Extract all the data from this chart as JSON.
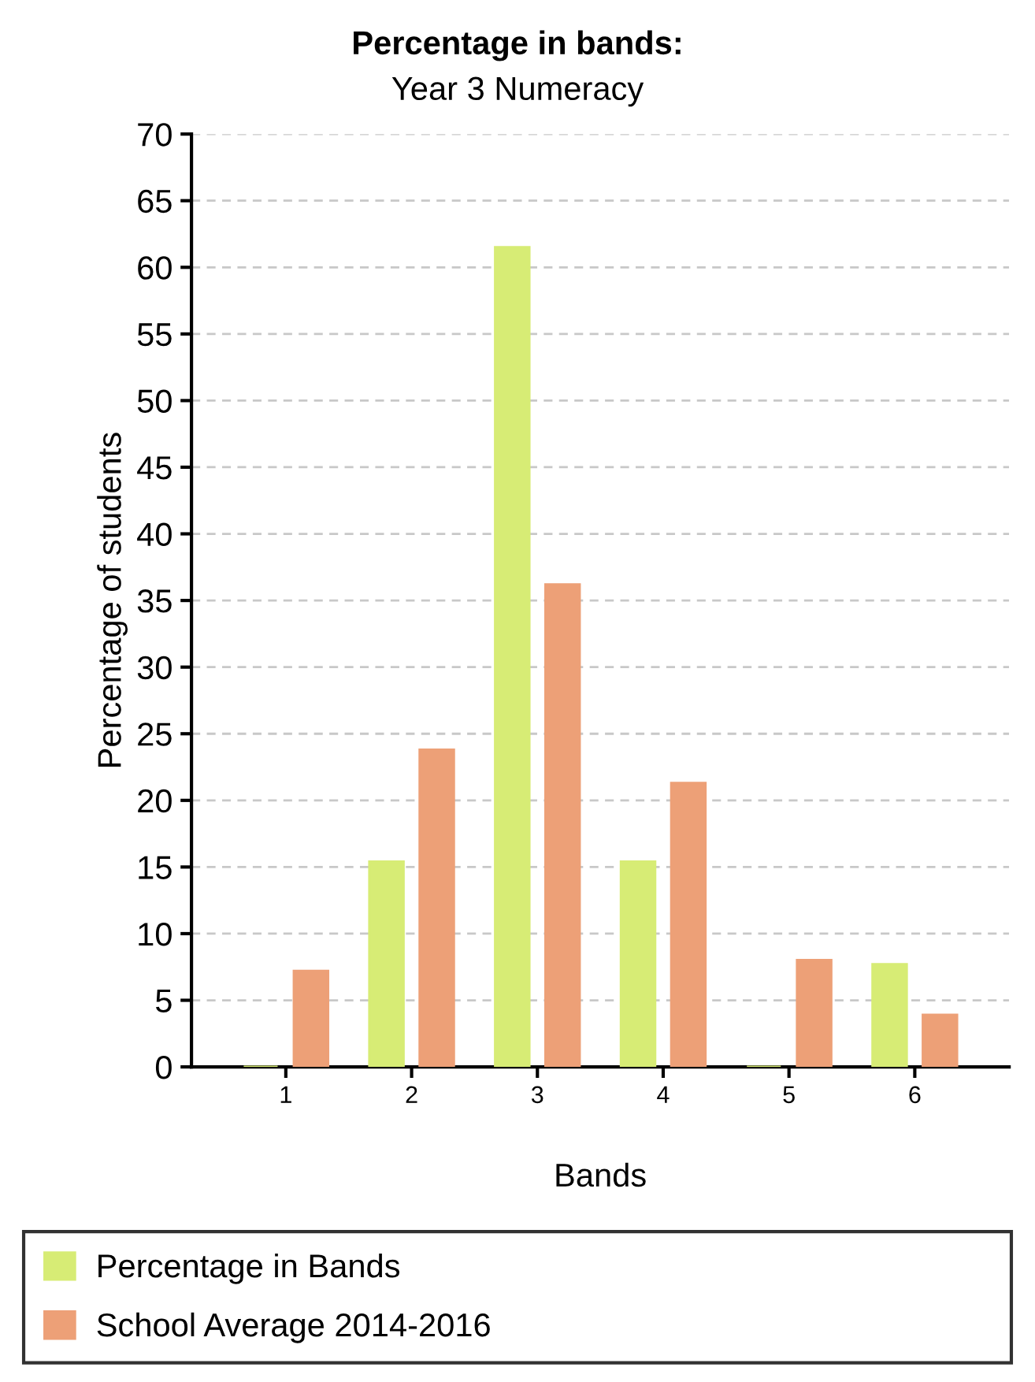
{
  "chart_data": {
    "type": "bar",
    "title": "Percentage in bands:",
    "subtitle": "Year 3 Numeracy",
    "xlabel": "Bands",
    "ylabel": "Percentage of students",
    "categories": [
      "1",
      "2",
      "3",
      "4",
      "5",
      "6"
    ],
    "series": [
      {
        "name": "Percentage in Bands",
        "color": "#d7ec75",
        "values": [
          0,
          15.4,
          61.5,
          15.4,
          0,
          7.7
        ]
      },
      {
        "name": "School Average 2014-2016",
        "color": "#eda077",
        "values": [
          7.2,
          23.8,
          36.2,
          21.3,
          8.0,
          3.9
        ]
      }
    ],
    "ylim": [
      0,
      70
    ],
    "yticks": [
      0,
      5,
      10,
      15,
      20,
      25,
      30,
      35,
      40,
      45,
      50,
      55,
      60,
      65,
      70
    ],
    "grid": "y",
    "legend": "bottom"
  }
}
